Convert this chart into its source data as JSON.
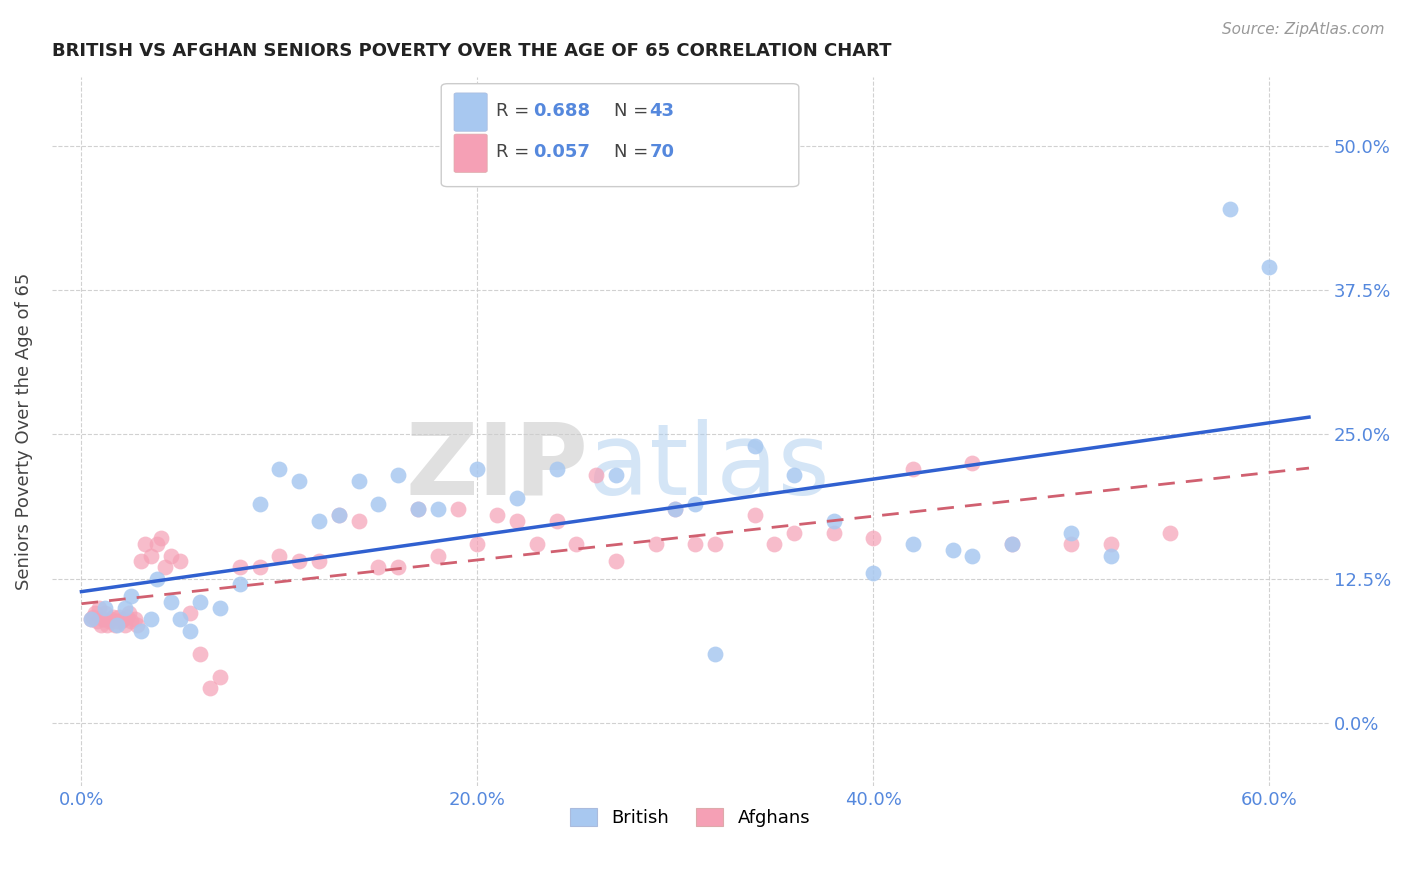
{
  "title": "BRITISH VS AFGHAN SENIORS POVERTY OVER THE AGE OF 65 CORRELATION CHART",
  "source": "Source: ZipAtlas.com",
  "ylabel": "Seniors Poverty Over the Age of 65",
  "xlabel_ticks": [
    "0.0%",
    "20.0%",
    "40.0%",
    "60.0%"
  ],
  "xlabel_vals": [
    0.0,
    0.2,
    0.4,
    0.6
  ],
  "ylabel_ticks": [
    "0.0%",
    "12.5%",
    "25.0%",
    "37.5%",
    "50.0%"
  ],
  "ylabel_vals": [
    0.0,
    0.125,
    0.25,
    0.375,
    0.5
  ],
  "xlim": [
    -0.015,
    0.63
  ],
  "ylim": [
    -0.055,
    0.56
  ],
  "british_R": 0.688,
  "british_N": 43,
  "afghan_R": 0.057,
  "afghan_N": 70,
  "british_color": "#a8c8f0",
  "afghan_color": "#f5a0b5",
  "line_british_color": "#3060d0",
  "line_afghan_color": "#d06070",
  "watermark_zip": "ZIP",
  "watermark_atlas": "atlas",
  "background_color": "#ffffff",
  "british_x": [
    0.005,
    0.012,
    0.018,
    0.022,
    0.025,
    0.03,
    0.035,
    0.038,
    0.045,
    0.05,
    0.055,
    0.06,
    0.07,
    0.08,
    0.09,
    0.1,
    0.11,
    0.12,
    0.13,
    0.14,
    0.15,
    0.16,
    0.17,
    0.18,
    0.2,
    0.22,
    0.24,
    0.27,
    0.3,
    0.31,
    0.34,
    0.36,
    0.38,
    0.4,
    0.42,
    0.44,
    0.45,
    0.47,
    0.5,
    0.52,
    0.32,
    0.58,
    0.6
  ],
  "british_y": [
    0.09,
    0.1,
    0.085,
    0.1,
    0.11,
    0.08,
    0.09,
    0.125,
    0.105,
    0.09,
    0.08,
    0.105,
    0.1,
    0.12,
    0.19,
    0.22,
    0.21,
    0.175,
    0.18,
    0.21,
    0.19,
    0.215,
    0.185,
    0.185,
    0.22,
    0.195,
    0.22,
    0.215,
    0.185,
    0.19,
    0.24,
    0.215,
    0.175,
    0.13,
    0.155,
    0.15,
    0.145,
    0.155,
    0.165,
    0.145,
    0.06,
    0.445,
    0.395
  ],
  "afghan_x": [
    0.005,
    0.006,
    0.007,
    0.008,
    0.009,
    0.01,
    0.011,
    0.012,
    0.013,
    0.014,
    0.015,
    0.016,
    0.017,
    0.018,
    0.019,
    0.02,
    0.021,
    0.022,
    0.023,
    0.024,
    0.025,
    0.027,
    0.028,
    0.03,
    0.032,
    0.035,
    0.038,
    0.04,
    0.042,
    0.045,
    0.05,
    0.055,
    0.06,
    0.065,
    0.07,
    0.08,
    0.09,
    0.1,
    0.11,
    0.12,
    0.13,
    0.14,
    0.15,
    0.16,
    0.17,
    0.18,
    0.19,
    0.2,
    0.21,
    0.22,
    0.23,
    0.24,
    0.25,
    0.26,
    0.27,
    0.29,
    0.3,
    0.31,
    0.32,
    0.34,
    0.35,
    0.36,
    0.38,
    0.4,
    0.42,
    0.45,
    0.47,
    0.5,
    0.52,
    0.55
  ],
  "afghan_y": [
    0.09,
    0.092,
    0.095,
    0.088,
    0.1,
    0.085,
    0.09,
    0.095,
    0.085,
    0.088,
    0.09,
    0.092,
    0.085,
    0.088,
    0.092,
    0.088,
    0.09,
    0.085,
    0.092,
    0.095,
    0.088,
    0.09,
    0.085,
    0.14,
    0.155,
    0.145,
    0.155,
    0.16,
    0.135,
    0.145,
    0.14,
    0.095,
    0.06,
    0.03,
    0.04,
    0.135,
    0.135,
    0.145,
    0.14,
    0.14,
    0.18,
    0.175,
    0.135,
    0.135,
    0.185,
    0.145,
    0.185,
    0.155,
    0.18,
    0.175,
    0.155,
    0.175,
    0.155,
    0.215,
    0.14,
    0.155,
    0.185,
    0.155,
    0.155,
    0.18,
    0.155,
    0.165,
    0.165,
    0.16,
    0.22,
    0.225,
    0.155,
    0.155,
    0.155,
    0.165
  ]
}
